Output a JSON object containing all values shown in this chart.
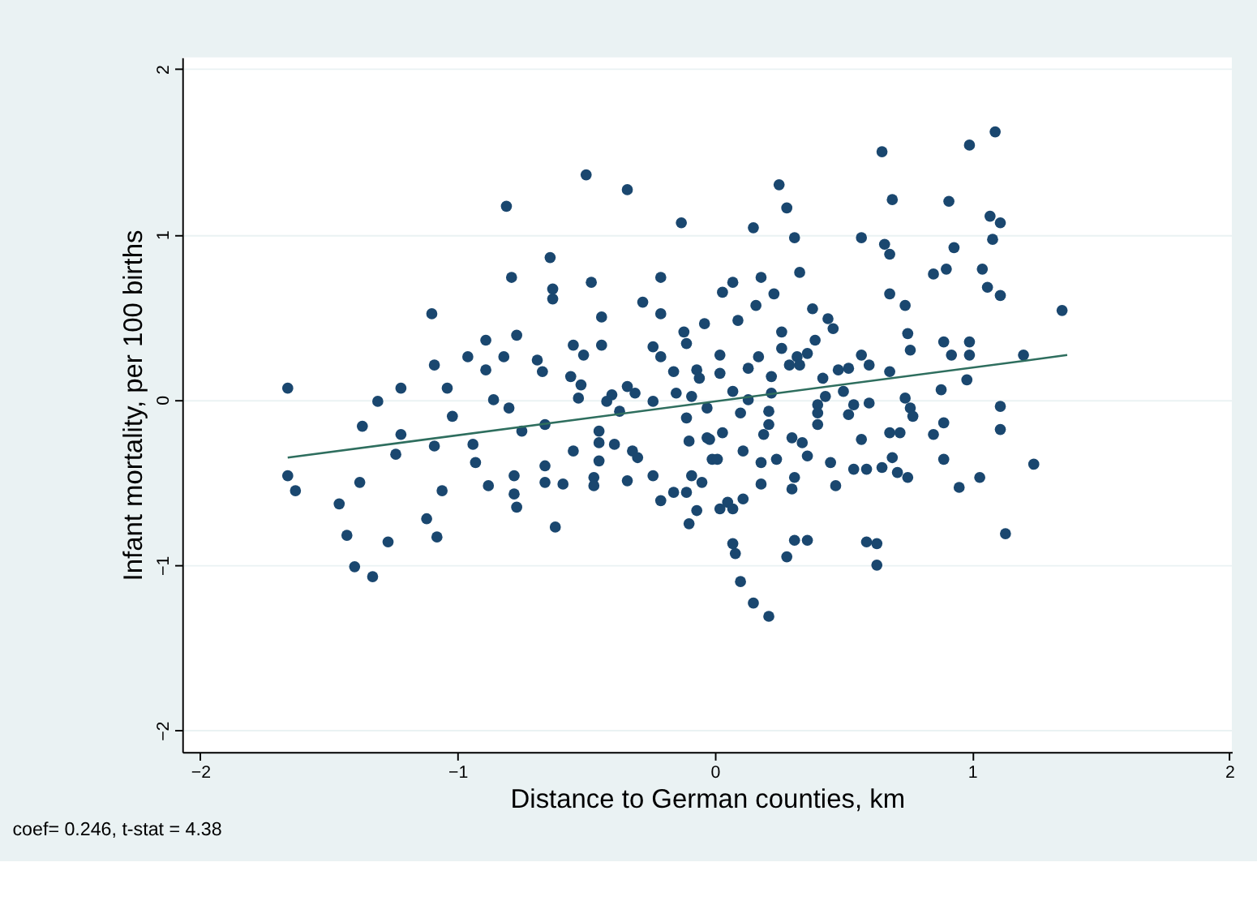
{
  "chart_data": {
    "type": "scatter",
    "xlabel": "Distance to German counties, km",
    "ylabel": "Infant mortality, per 100 births",
    "annotations": [
      "coef= 0.246, t-stat = 4.38"
    ],
    "xlim": [
      -2.07,
      2.01
    ],
    "xticks": [
      -2,
      -1,
      0,
      1,
      2
    ],
    "ylim": [
      -2.13,
      2.07
    ],
    "yticks": [
      -2,
      -1,
      0,
      1,
      2
    ],
    "grid": "y",
    "marker": "circle",
    "series": [
      {
        "color": "#1a476f",
        "x": [
          -1.66,
          -1.66,
          -1.63,
          -1.46,
          -1.43,
          -1.4,
          -1.33,
          -1.37,
          -1.31,
          -1.38,
          -1.27,
          -1.22,
          -1.22,
          -1.24,
          -1.12,
          -1.1,
          -1.09,
          -1.06,
          -1.08,
          -1.09,
          -1.04,
          -1.02,
          -0.96,
          -0.94,
          -0.93,
          -0.89,
          -0.89,
          -0.86,
          -0.88,
          -0.78,
          -0.78,
          -0.77,
          -0.8,
          -0.82,
          -0.79,
          -0.77,
          -0.69,
          -0.67,
          -0.75,
          -0.66,
          -0.66,
          -0.66,
          -0.62,
          -0.59,
          -0.64,
          -0.63,
          -0.63,
          -0.48,
          -0.55,
          -0.51,
          -0.56,
          -0.52,
          -0.53,
          -0.55,
          -0.45,
          -0.45,
          -0.45,
          -0.47,
          -0.47,
          -0.44,
          -0.44,
          -0.4,
          -0.42,
          -0.39,
          -0.34,
          -0.34,
          -0.31,
          -0.37,
          -0.32,
          -0.3,
          -0.28,
          -0.21,
          -0.21,
          -0.24,
          -0.21,
          -0.16,
          -0.24,
          -0.24,
          -0.21,
          -0.16,
          -0.11,
          -0.1,
          -0.07,
          -0.12,
          -0.11,
          -0.04,
          -0.15,
          -0.09,
          -0.11,
          -0.07,
          -0.06,
          -0.1,
          -0.03,
          -0.09,
          -0.05,
          -0.01,
          -0.81,
          -0.5,
          -0.34,
          -0.13,
          0.15,
          0.25,
          0.28,
          0.31,
          0.33,
          0.03,
          0.07,
          0.18,
          0.16,
          0.23,
          0.38,
          0.09,
          0.44,
          0.46,
          0.26,
          0.26,
          0.39,
          0.36,
          0.32,
          0.29,
          0.33,
          0.17,
          0.13,
          0.02,
          0.02,
          0.22,
          0.07,
          0.13,
          0.22,
          0.42,
          0.48,
          0.52,
          0.57,
          0.6,
          0.68,
          0.43,
          0.5,
          0.4,
          0.54,
          0.6,
          0.1,
          0.21,
          -0.03,
          0.03,
          -0.02,
          0.21,
          0.19,
          0.4,
          0.4,
          0.52,
          0.57,
          0.3,
          0.34,
          0.01,
          0.11,
          0.18,
          0.24,
          0.36,
          0.45,
          0.18,
          0.3,
          0.31,
          0.47,
          0.54,
          0.59,
          0.65,
          0.69,
          0.71,
          0.75,
          0.68,
          0.72,
          0.02,
          0.05,
          0.11,
          0.07,
          0.07,
          0.08,
          0.1,
          0.15,
          0.21,
          0.28,
          0.31,
          0.36,
          0.59,
          0.63,
          0.63,
          0.65,
          0.69,
          0.57,
          0.66,
          0.68,
          0.68,
          0.74,
          0.75,
          0.76,
          0.74,
          0.76,
          0.77,
          0.85,
          0.88,
          0.89,
          0.89,
          0.95,
          0.91,
          0.93,
          0.85,
          0.9,
          0.89,
          0.92,
          0.99,
          0.99,
          0.98,
          0.99,
          1.09,
          1.07,
          1.11,
          1.08,
          1.04,
          1.06,
          1.11,
          1.11,
          1.11,
          1.03,
          1.13,
          1.24,
          1.2,
          1.35
        ],
        "values": [
          0.07,
          -0.46,
          -0.55,
          -0.63,
          -0.82,
          -1.01,
          -1.07,
          -0.16,
          -0.01,
          -0.5,
          -0.86,
          0.07,
          -0.21,
          -0.33,
          -0.72,
          0.52,
          0.21,
          -0.55,
          -0.83,
          -0.28,
          0.07,
          -0.1,
          0.26,
          -0.27,
          -0.38,
          0.36,
          0.18,
          0.0,
          -0.52,
          -0.46,
          -0.57,
          -0.65,
          -0.05,
          0.26,
          0.74,
          0.39,
          0.24,
          0.17,
          -0.19,
          -0.15,
          -0.4,
          -0.5,
          -0.77,
          -0.51,
          0.86,
          0.67,
          0.61,
          0.71,
          0.33,
          0.27,
          0.14,
          0.09,
          0.01,
          -0.31,
          -0.19,
          -0.26,
          -0.37,
          -0.47,
          -0.52,
          0.5,
          0.33,
          0.03,
          -0.01,
          -0.27,
          -0.49,
          0.08,
          0.04,
          -0.07,
          -0.31,
          -0.35,
          0.59,
          0.52,
          0.74,
          0.32,
          0.26,
          0.17,
          -0.01,
          -0.46,
          -0.61,
          -0.56,
          -0.56,
          -0.75,
          -0.67,
          0.41,
          0.34,
          0.46,
          0.04,
          0.02,
          -0.11,
          0.18,
          0.13,
          -0.25,
          -0.23,
          -0.46,
          -0.5,
          -0.36,
          1.17,
          1.36,
          1.27,
          1.07,
          1.04,
          1.3,
          1.16,
          0.98,
          0.77,
          0.65,
          0.71,
          0.74,
          0.57,
          0.64,
          0.55,
          0.48,
          0.49,
          0.43,
          0.41,
          0.31,
          0.36,
          0.28,
          0.26,
          0.21,
          0.21,
          0.26,
          0.19,
          0.27,
          0.16,
          0.14,
          0.05,
          0.0,
          0.04,
          0.13,
          0.18,
          0.19,
          0.27,
          0.21,
          0.17,
          0.02,
          0.05,
          -0.03,
          -0.03,
          -0.02,
          -0.08,
          -0.07,
          -0.05,
          -0.2,
          -0.24,
          -0.15,
          -0.21,
          -0.08,
          -0.15,
          -0.09,
          -0.24,
          -0.23,
          -0.26,
          -0.36,
          -0.31,
          -0.38,
          -0.36,
          -0.34,
          -0.38,
          -0.51,
          -0.54,
          -0.47,
          -0.52,
          -0.42,
          -0.42,
          -0.41,
          -0.35,
          -0.44,
          -0.47,
          -0.2,
          -0.2,
          -0.66,
          -0.62,
          -0.6,
          -0.66,
          -0.87,
          -0.93,
          -1.1,
          -1.23,
          -1.31,
          -0.95,
          -0.85,
          -0.85,
          -0.86,
          -0.87,
          -1.0,
          1.5,
          1.21,
          0.98,
          0.94,
          0.88,
          0.64,
          0.57,
          0.4,
          0.3,
          0.01,
          -0.05,
          -0.1,
          -0.21,
          0.06,
          -0.14,
          -0.36,
          -0.53,
          1.2,
          0.92,
          0.76,
          0.79,
          0.35,
          0.27,
          0.35,
          0.27,
          0.12,
          1.54,
          1.62,
          1.11,
          1.07,
          0.97,
          0.79,
          0.68,
          0.63,
          -0.04,
          -0.18,
          -0.47,
          -0.81,
          -0.39,
          0.27,
          0.54
        ]
      },
      {
        "type": "line",
        "marker": "none",
        "color": "#2e6e5e",
        "x": [
          -1.66,
          1.37
        ],
        "values": [
          -0.35,
          0.27
        ]
      }
    ]
  }
}
